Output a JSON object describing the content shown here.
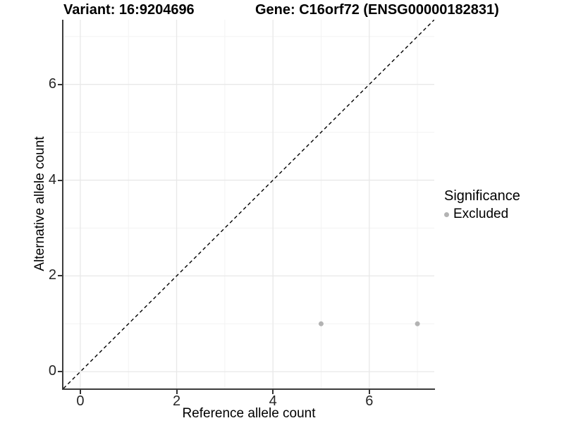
{
  "chart_data": {
    "type": "scatter",
    "title_left": "Variant: 16:9204696",
    "title_right": "Gene: C16orf72 (ENSG00000182831)",
    "xlabel": "Reference allele count",
    "ylabel": "Alternative allele count",
    "xlim": [
      -0.35,
      7.35
    ],
    "ylim": [
      -0.35,
      7.35
    ],
    "x_major_ticks": [
      0,
      2,
      4,
      6
    ],
    "x_minor_ticks": [
      1,
      3,
      5,
      7
    ],
    "y_major_ticks": [
      0,
      2,
      4,
      6
    ],
    "y_minor_ticks": [
      1,
      3,
      5,
      7
    ],
    "grid": "major+minor",
    "identity_line": {
      "slope": 1,
      "intercept": 0,
      "style": "dashed",
      "color": "#000000"
    },
    "series": [
      {
        "name": "Excluded",
        "color": "#b3b3b3",
        "points": [
          {
            "x": 5,
            "y": 1
          },
          {
            "x": 7,
            "y": 1
          }
        ]
      }
    ],
    "legend": {
      "title": "Significance",
      "position": "right",
      "entries": [
        {
          "label": "Excluded",
          "color": "#b3b3b3"
        }
      ]
    }
  },
  "colors": {
    "background": "#ffffff",
    "grid_major": "#e8e8e8",
    "grid_minor": "#f3f3f3",
    "axis_line": "#3c3c3c",
    "tick_mark": "#333333",
    "tick_text": "#262626",
    "point": "#b3b3b3",
    "identity_line": "#000000"
  }
}
